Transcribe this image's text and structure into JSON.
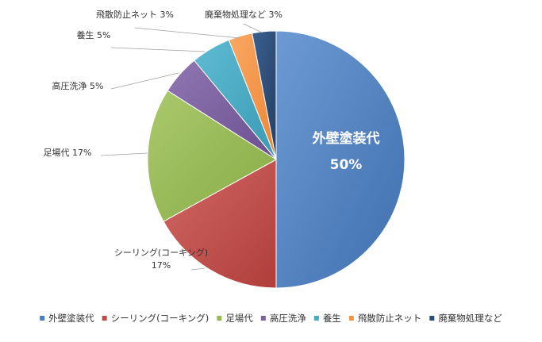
{
  "chart_data": {
    "type": "pie",
    "categories": [
      "外壁塗装代",
      "シーリング(コーキング)",
      "足場代",
      "高圧洗浄",
      "養生",
      "飛散防止ネット",
      "廃棄物処理など"
    ],
    "values": [
      50,
      17,
      17,
      5,
      5,
      3,
      3
    ],
    "value_labels": [
      "50%",
      "17%",
      "17%",
      "5%",
      "5%",
      "3%",
      "3%"
    ],
    "colors": [
      "#4a7ebb",
      "#be4b48",
      "#98b954",
      "#7d60a0",
      "#46aac4",
      "#f79646",
      "#2c4d75"
    ],
    "legend_position": "bottom",
    "slice_labels": [
      {
        "name": "外壁塗装代",
        "value": "50%"
      },
      {
        "name": "シーリング(コーキング)",
        "value": "17%"
      },
      {
        "name": "足場代",
        "value": "17%"
      },
      {
        "name": "高圧洗浄",
        "value": "5%"
      },
      {
        "name": "養生",
        "value": "5%"
      },
      {
        "name": "飛散防止ネット",
        "value": "3%"
      },
      {
        "name": "廃棄物処理など",
        "value": "3%"
      }
    ],
    "legend": [
      "外壁塗装代",
      "シーリング(コーキング)",
      "足場代",
      "高圧洗浄",
      "養生",
      "飛散防止ネット",
      "廃棄物処理など"
    ]
  }
}
